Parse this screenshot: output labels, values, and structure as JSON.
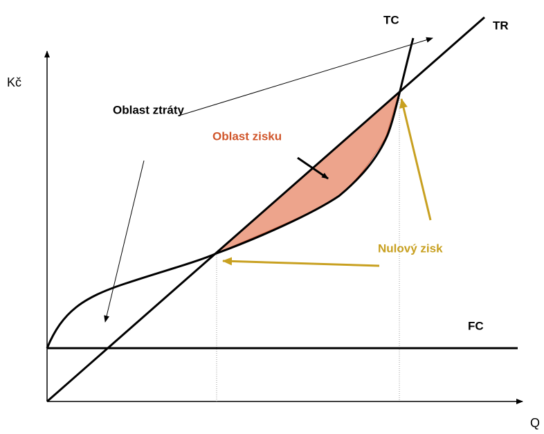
{
  "axes": {
    "y_label": "Kč",
    "x_label": "Q"
  },
  "curves": {
    "tc": "TC",
    "tr": "TR",
    "fc": "FC"
  },
  "annotations": {
    "loss_area": "Oblast ztráty",
    "profit_area": "Oblast zisku",
    "zero_profit": "Nulový zisk"
  }
}
